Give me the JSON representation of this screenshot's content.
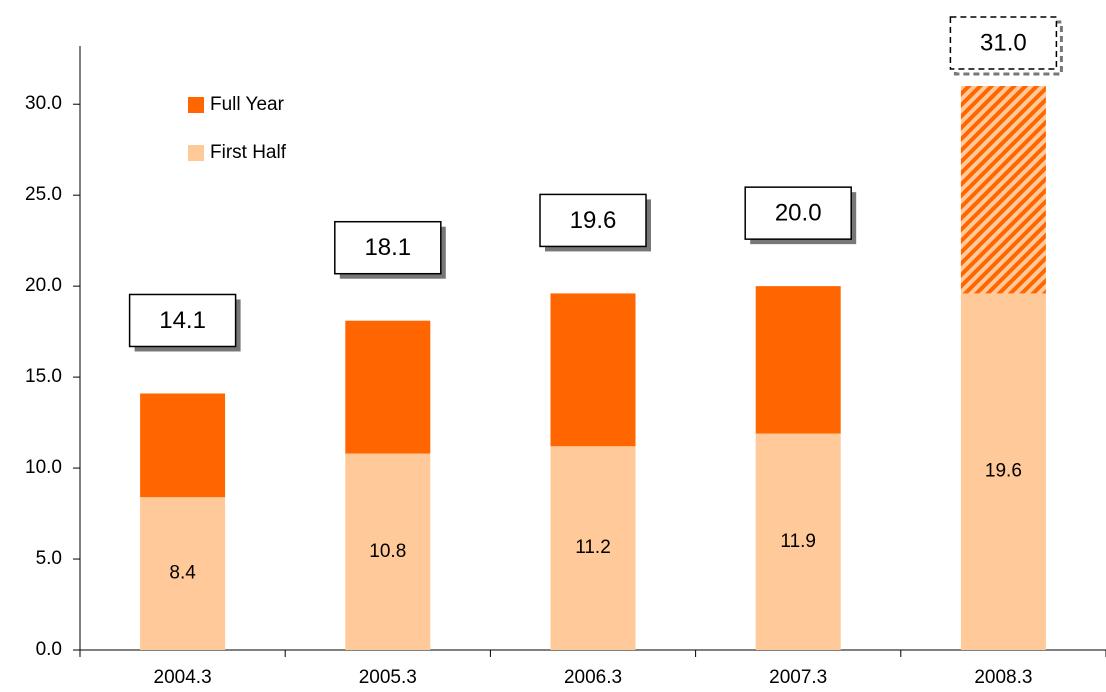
{
  "chart_data": {
    "type": "stacked_bar",
    "categories": [
      "2004.3",
      "2005.3",
      "2006.3",
      "2007.3",
      "2008.3"
    ],
    "series": [
      {
        "name": "First Half",
        "color": "#ffc999",
        "values": [
          8.4,
          10.8,
          11.2,
          11.9,
          19.6
        ]
      },
      {
        "name": "Full Year",
        "color": "#ff6600",
        "values": [
          5.7,
          7.3,
          8.4,
          8.1,
          11.4
        ]
      }
    ],
    "totals": {
      "values": [
        14.1,
        18.1,
        19.6,
        20,
        31
      ],
      "value_labels": [
        "14.1",
        "18.1",
        "19.6",
        "20.0",
        "31.0"
      ]
    },
    "forecast": [
      false,
      false,
      false,
      false,
      true
    ],
    "ylim": [
      0,
      33.2
    ],
    "yticks": [
      {
        "value": 0,
        "label": "0.0"
      },
      {
        "value": 5,
        "label": "5.0"
      },
      {
        "value": 10,
        "label": "10.0"
      },
      {
        "value": 15,
        "label": "15.0"
      },
      {
        "value": 20,
        "label": "20.0"
      },
      {
        "value": 25,
        "label": "25.0"
      },
      {
        "value": 30,
        "label": "30.0"
      }
    ],
    "grid": false,
    "legend": "upper left"
  }
}
